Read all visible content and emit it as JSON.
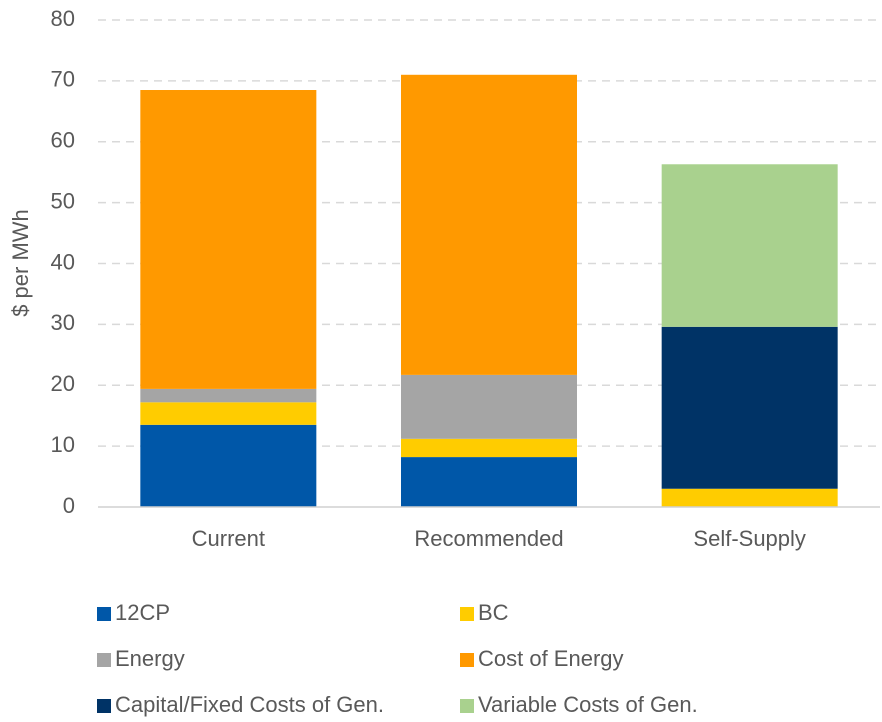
{
  "chart_data": {
    "type": "stacked_bar",
    "y_label": "$ per MWh",
    "categories": [
      "Current",
      "Recommended",
      "Self-Supply"
    ],
    "series": [
      {
        "name": "12CP",
        "color": "#0057a8",
        "values": [
          13.5,
          8.2,
          0
        ]
      },
      {
        "name": "BC",
        "color": "#ffcc00",
        "values": [
          3.7,
          3.0,
          3.0
        ]
      },
      {
        "name": "Energy",
        "color": "#a5a5a5",
        "values": [
          2.2,
          10.5,
          0
        ]
      },
      {
        "name": "Cost of Energy",
        "color": "#ff9900",
        "values": [
          49.1,
          49.3,
          0
        ]
      },
      {
        "name": "Capital/Fixed Costs of Gen.",
        "color": "#003366",
        "values": [
          0,
          0,
          26.6
        ]
      },
      {
        "name": "Variable Costs of Gen.",
        "color": "#a9d18e",
        "values": [
          0,
          0,
          26.7
        ]
      }
    ],
    "ylim": [
      0,
      80
    ],
    "yticks": [
      0,
      10,
      20,
      30,
      40,
      50,
      60,
      70,
      80
    ],
    "grid": true
  }
}
